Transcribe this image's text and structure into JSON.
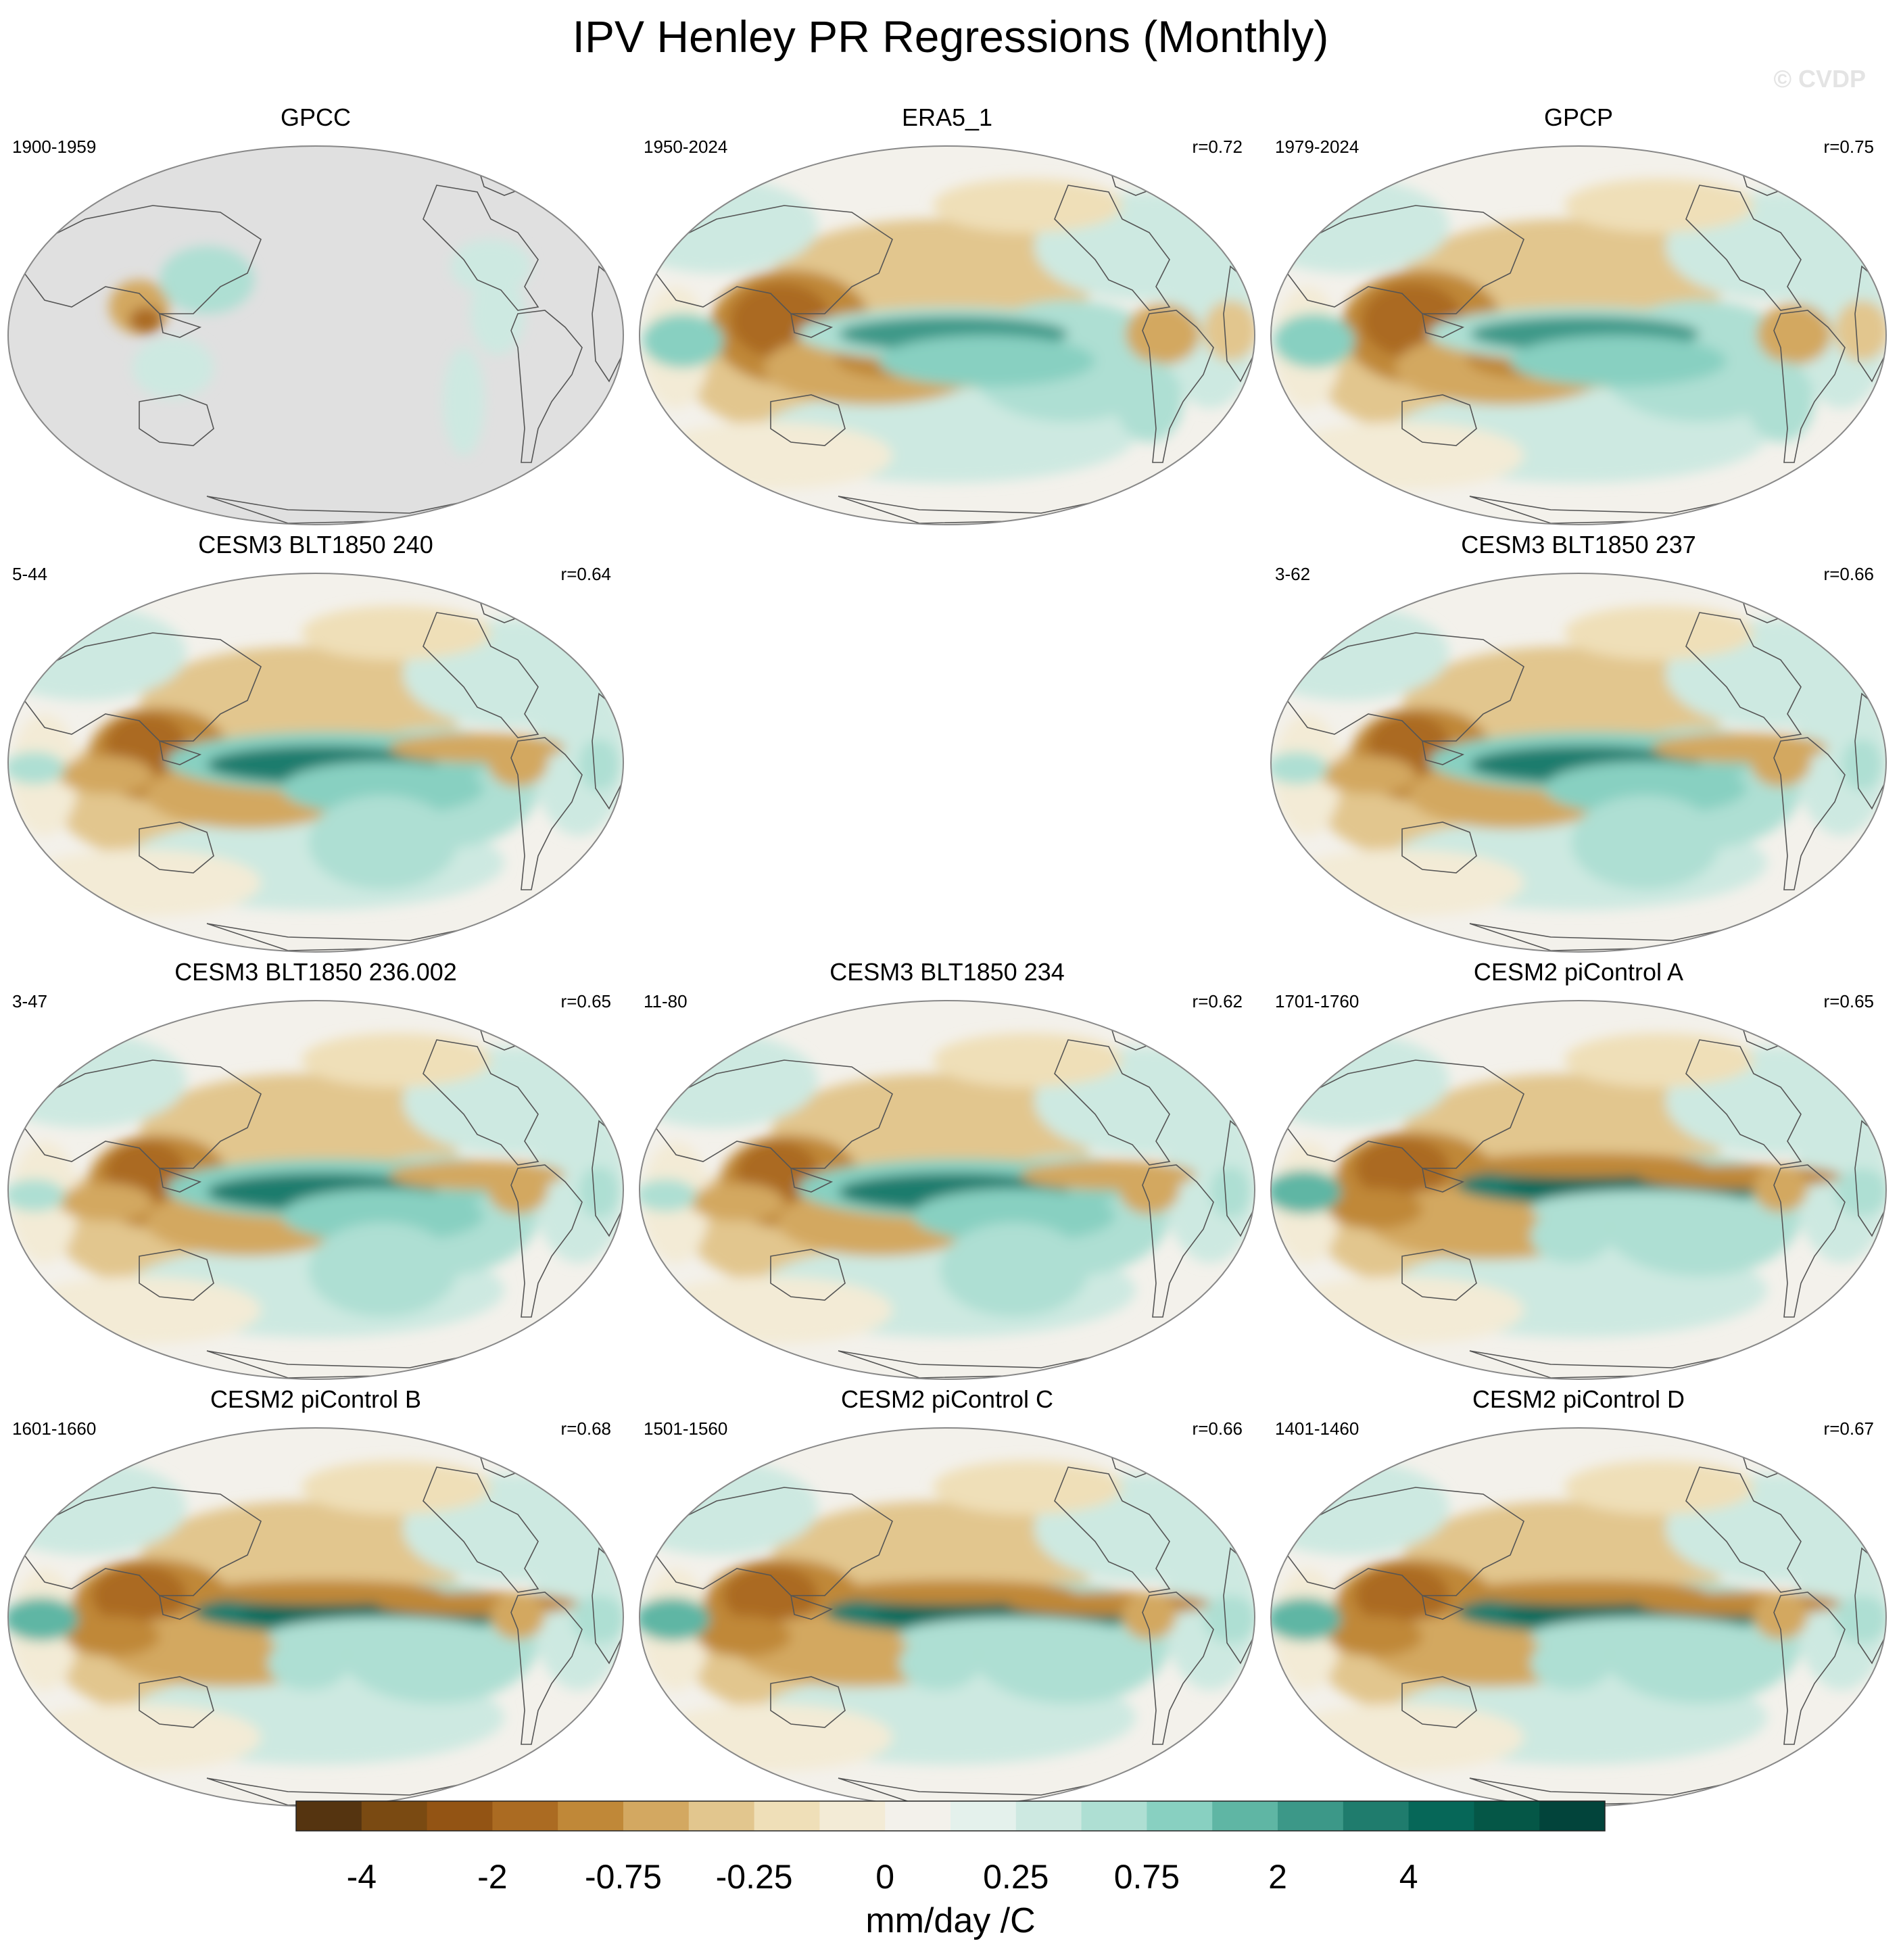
{
  "figure": {
    "title": "IPV Henley PR Regressions (Monthly)",
    "copyright": "© CVDP",
    "colors": {
      "land_masked": "#e0e0e0",
      "coast": "#555555",
      "border": "#888888"
    }
  },
  "panels": [
    {
      "id": "gpcc",
      "title": "GPCC",
      "period": "1900-1959",
      "corr": "",
      "pattern": "gpcc"
    },
    {
      "id": "era5",
      "title": "ERA5_1",
      "period": "1950-2024",
      "corr": "r=0.72",
      "pattern": "obs"
    },
    {
      "id": "gpcp",
      "title": "GPCP",
      "period": "1979-2024",
      "corr": "r=0.75",
      "pattern": "obs"
    },
    {
      "id": "cesm3-240",
      "title": "CESM3 BLT1850 240",
      "period": "5-44",
      "corr": "r=0.64",
      "pattern": "model"
    },
    {
      "id": "cesm3-237",
      "title": "CESM3 BLT1850 237",
      "period": "3-62",
      "corr": "r=0.66",
      "pattern": "model"
    },
    {
      "id": "cesm3-236",
      "title": "CESM3 BLT1850 236.002",
      "period": "3-47",
      "corr": "r=0.65",
      "pattern": "model"
    },
    {
      "id": "cesm3-234",
      "title": "CESM3 BLT1850 234",
      "period": "11-80",
      "corr": "r=0.62",
      "pattern": "model"
    },
    {
      "id": "cesm2-a",
      "title": "CESM2 piControl A",
      "period": "1701-1760",
      "corr": "r=0.65",
      "pattern": "cesm2"
    },
    {
      "id": "cesm2-b",
      "title": "CESM2 piControl B",
      "period": "1601-1660",
      "corr": "r=0.68",
      "pattern": "cesm2"
    },
    {
      "id": "cesm2-c",
      "title": "CESM2 piControl C",
      "period": "1501-1560",
      "corr": "r=0.66",
      "pattern": "cesm2"
    },
    {
      "id": "cesm2-d",
      "title": "CESM2 piControl D",
      "period": "1401-1460",
      "corr": "r=0.67",
      "pattern": "cesm2"
    }
  ],
  "colorbar": {
    "label": "mm/day /C",
    "colors": [
      "#553410",
      "#7a4a12",
      "#935414",
      "#ab6b22",
      "#c08838",
      "#d3a861",
      "#e2c68e",
      "#efdfb8",
      "#f3ebd6",
      "#f3f1eb",
      "#e4f1ec",
      "#cde9e1",
      "#aedfd3",
      "#88d0c1",
      "#5fb6a4",
      "#3c9888",
      "#1f7c6d",
      "#066758",
      "#055747",
      "#02443b"
    ],
    "tick_labels": [
      "-4",
      "-2",
      "-0.75",
      "-0.25",
      "0",
      "0.25",
      "0.75",
      "2",
      "4"
    ]
  }
}
